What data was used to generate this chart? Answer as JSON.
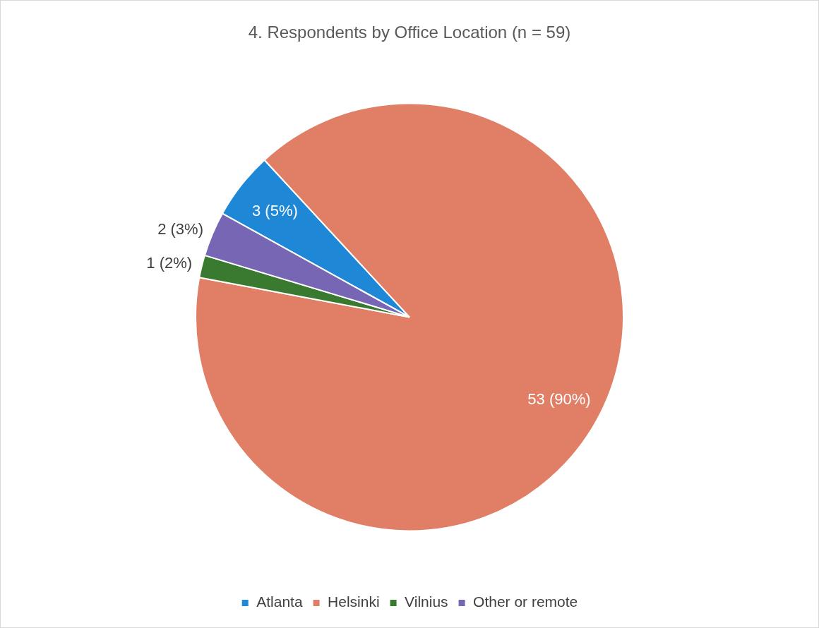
{
  "chart_data": {
    "type": "pie",
    "title": "4. Respondents by Office Location (n = 59)",
    "categories": [
      "Atlanta",
      "Helsinki",
      "Vilnius",
      "Other or remote"
    ],
    "values": [
      3,
      53,
      1,
      2
    ],
    "colors": [
      "#1f88d6",
      "#e07f66",
      "#3a7a30",
      "#7766b4"
    ],
    "value_labels": [
      "3 (5%)",
      "53 (90%)",
      "1 (2%)",
      "2 (3%)"
    ],
    "legend": "bottom"
  }
}
